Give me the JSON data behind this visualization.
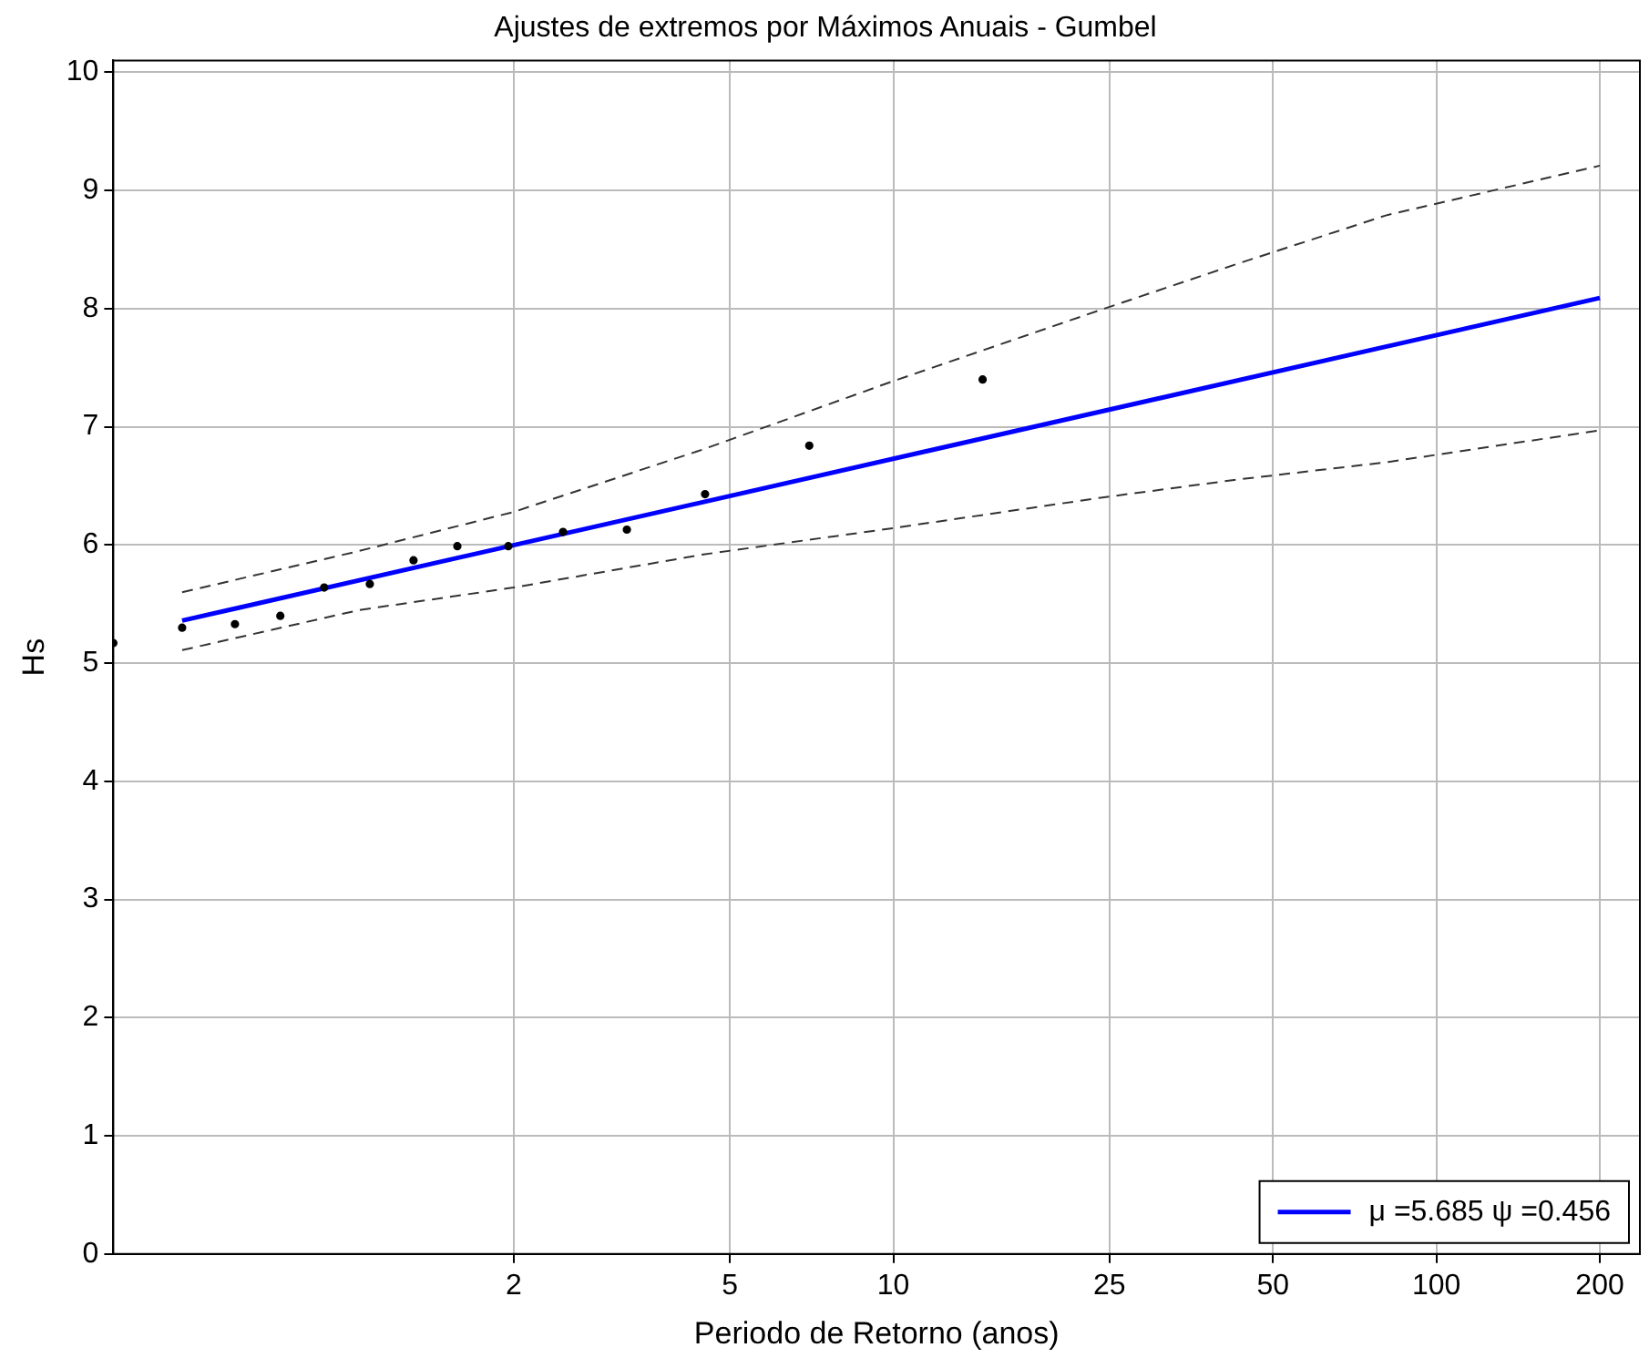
{
  "chart_data": {
    "type": "line",
    "title": "Ajustes de extremos por Máximos Anuais - Gumbel",
    "xlabel": "Periodo de Retorno (anos)",
    "ylabel": "Hs",
    "log": "x",
    "xlim": [
      0.366,
      237
    ],
    "xticks": [
      2,
      5,
      10,
      25,
      50,
      100,
      200
    ],
    "ylim": [
      0,
      10.1
    ],
    "yticks": [
      0,
      1,
      2,
      3,
      4,
      5,
      6,
      7,
      8,
      9,
      10
    ],
    "grid": true,
    "legend": "bottom right",
    "series": [
      {
        "type": "scatter",
        "marker": "circle",
        "color": "#000000",
        "x": [
          0.366,
          0.49,
          0.613,
          0.743,
          0.895,
          1.086,
          1.307,
          1.574,
          1.954,
          2.464,
          3.23,
          4.5,
          7.0,
          14.6
        ],
        "values": [
          5.17,
          5.3,
          5.33,
          5.4,
          5.64,
          5.67,
          5.87,
          5.99,
          5.99,
          6.11,
          6.13,
          6.43,
          6.84,
          7.4
        ]
      },
      {
        "type": "line",
        "name": "μ =5.685 ψ =0.456",
        "color": "#0000ff",
        "line_style": "solid",
        "x": [
          0.49,
          200
        ],
        "values": [
          5.36,
          8.09
        ]
      },
      {
        "type": "line",
        "color": "#333333",
        "line_style": "dashed",
        "x": [
          0.49,
          1.04,
          2,
          4.47,
          9.9,
          24.1,
          42.4,
          80.9,
          200
        ],
        "values": [
          5.6,
          5.95,
          6.28,
          6.81,
          7.38,
          7.99,
          8.37,
          8.79,
          9.21
        ]
      },
      {
        "type": "line",
        "color": "#333333",
        "line_style": "dashed",
        "x": [
          0.49,
          1.04,
          2,
          4.47,
          9.9,
          24.1,
          42.4,
          80.9,
          200
        ],
        "values": [
          5.11,
          5.45,
          5.64,
          5.92,
          6.14,
          6.4,
          6.55,
          6.7,
          6.97
        ]
      }
    ]
  }
}
